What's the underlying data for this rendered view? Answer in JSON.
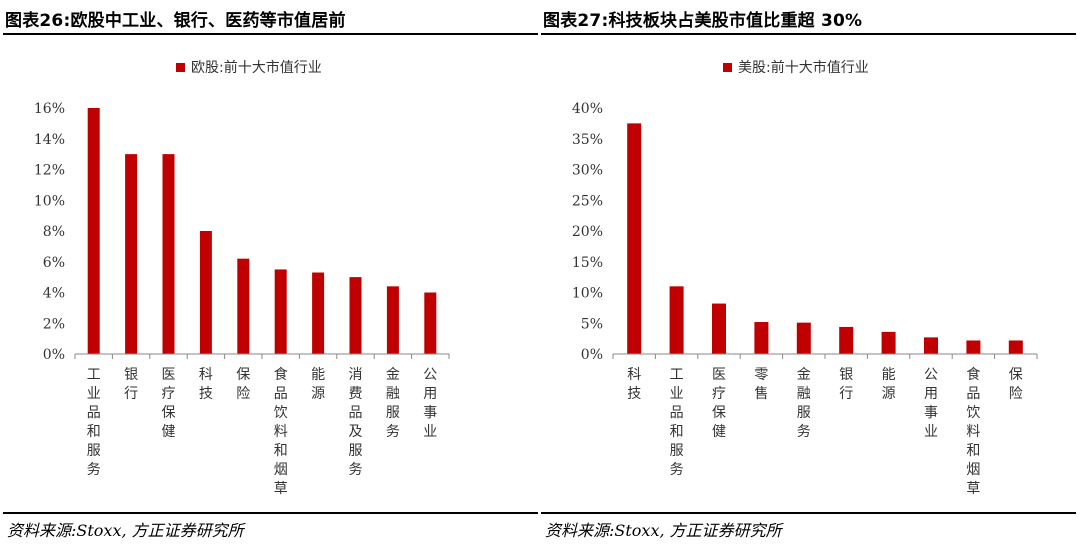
{
  "panels": [
    {
      "title": "图表26:欧股中工业、银行、医药等市值居前",
      "source": "资料来源:Stoxx, 方正证券研究所",
      "chart_data": {
        "type": "bar",
        "categories": [
          "工业品和服务",
          "银行",
          "医疗保健",
          "科技",
          "保险",
          "食品饮料和烟草",
          "能源",
          "消费品及服务",
          "金融服务",
          "公用事业"
        ],
        "series": [
          {
            "name": "欧股:前十大市值行业",
            "values": [
              16.0,
              13.0,
              13.0,
              8.0,
              6.2,
              5.5,
              5.3,
              5.0,
              4.4,
              4.0
            ]
          }
        ],
        "ylim": [
          0,
          16
        ],
        "yticks": [
          "0%",
          "2%",
          "4%",
          "6%",
          "8%",
          "10%",
          "12%",
          "14%",
          "16%"
        ],
        "value_unit": "%",
        "legend_position": "top",
        "grid": false,
        "color": "#c00000"
      }
    },
    {
      "title": "图表27:科技板块占美股市值比重超 30%",
      "source": "资料来源:Stoxx, 方正证券研究所",
      "chart_data": {
        "type": "bar",
        "categories": [
          "科技",
          "工业品和服务",
          "医疗保健",
          "零售",
          "金融服务",
          "银行",
          "能源",
          "公用事业",
          "食品饮料和烟草",
          "保险"
        ],
        "series": [
          {
            "name": "美股:前十大市值行业",
            "values": [
              37.5,
              11.0,
              8.2,
              5.2,
              5.1,
              4.4,
              3.6,
              2.7,
              2.2,
              2.2
            ]
          }
        ],
        "ylim": [
          0,
          40
        ],
        "yticks": [
          "0%",
          "5%",
          "10%",
          "15%",
          "20%",
          "25%",
          "30%",
          "35%",
          "40%"
        ],
        "value_unit": "%",
        "legend_position": "top",
        "grid": false,
        "color": "#c00000"
      }
    }
  ]
}
